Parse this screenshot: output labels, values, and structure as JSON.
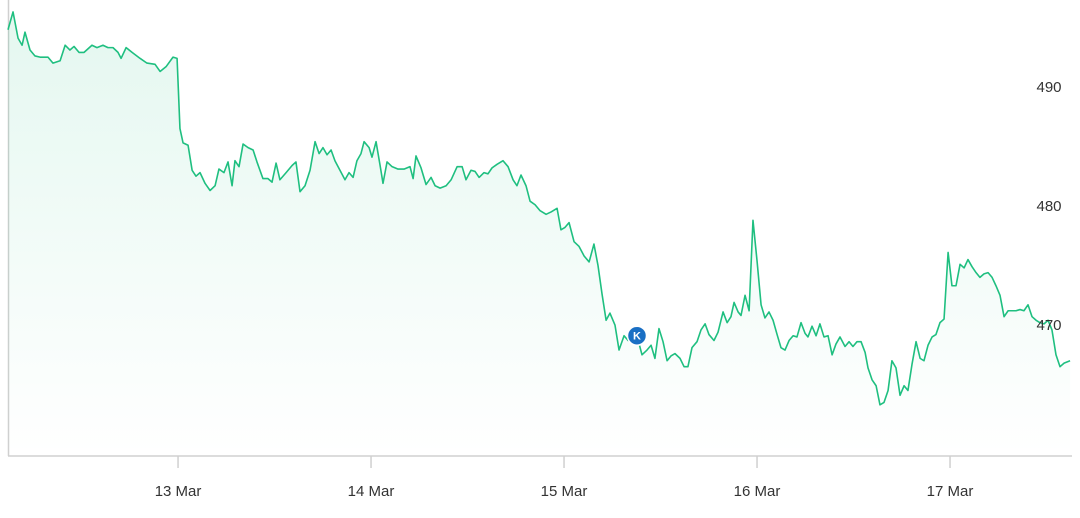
{
  "chart_data": {
    "type": "line",
    "color": "#1fbf80",
    "area": true,
    "xlim": [
      12.119,
      17.632
    ],
    "ylim": [
      459.1,
      497.4
    ],
    "xticks": [
      {
        "value": 13,
        "label": "13 Mar"
      },
      {
        "value": 14,
        "label": "14 Mar"
      },
      {
        "value": 15,
        "label": "15 Mar"
      },
      {
        "value": 16,
        "label": "16 Mar"
      },
      {
        "value": 17,
        "label": "17 Mar"
      }
    ],
    "yticks": [
      470,
      480,
      490
    ],
    "annotations": [
      {
        "x": 15.378,
        "y": 469.2,
        "text": "K"
      }
    ],
    "x": [
      12.119,
      12.145,
      12.171,
      12.192,
      12.207,
      12.233,
      12.259,
      12.285,
      12.326,
      12.352,
      12.389,
      12.415,
      12.44,
      12.461,
      12.487,
      12.513,
      12.554,
      12.58,
      12.611,
      12.637,
      12.663,
      12.689,
      12.705,
      12.731,
      12.762,
      12.803,
      12.839,
      12.881,
      12.907,
      12.938,
      12.974,
      12.995,
      13.01,
      13.026,
      13.052,
      13.073,
      13.093,
      13.114,
      13.14,
      13.166,
      13.192,
      13.212,
      13.238,
      13.259,
      13.28,
      13.295,
      13.316,
      13.337,
      13.363,
      13.389,
      13.409,
      13.44,
      13.466,
      13.487,
      13.508,
      13.528,
      13.56,
      13.591,
      13.611,
      13.632,
      13.658,
      13.684,
      13.71,
      13.731,
      13.751,
      13.772,
      13.793,
      13.813,
      13.839,
      13.865,
      13.886,
      13.907,
      13.927,
      13.948,
      13.964,
      13.99,
      14.005,
      14.026,
      14.047,
      14.062,
      14.083,
      14.109,
      14.14,
      14.171,
      14.202,
      14.218,
      14.233,
      14.259,
      14.285,
      14.311,
      14.332,
      14.358,
      14.389,
      14.415,
      14.446,
      14.472,
      14.492,
      14.518,
      14.539,
      14.56,
      14.585,
      14.606,
      14.627,
      14.653,
      14.684,
      14.71,
      14.736,
      14.756,
      14.777,
      14.803,
      14.824,
      14.85,
      14.876,
      14.907,
      14.933,
      14.964,
      14.984,
      15.005,
      15.026,
      15.052,
      15.078,
      15.104,
      15.13,
      15.155,
      15.176,
      15.197,
      15.218,
      15.238,
      15.264,
      15.285,
      15.311,
      15.332,
      15.352,
      15.378,
      15.404,
      15.43,
      15.451,
      15.471,
      15.492,
      15.513,
      15.534,
      15.554,
      15.575,
      15.601,
      15.622,
      15.642,
      15.663,
      15.689,
      15.71,
      15.731,
      15.751,
      15.777,
      15.798,
      15.824,
      15.845,
      15.865,
      15.881,
      15.902,
      15.917,
      15.938,
      15.959,
      15.979,
      16.0,
      16.021,
      16.041,
      16.062,
      16.083,
      16.104,
      16.124,
      16.145,
      16.166,
      16.187,
      16.207,
      16.228,
      16.249,
      16.264,
      16.285,
      16.306,
      16.326,
      16.347,
      16.368,
      16.389,
      16.409,
      16.43,
      16.456,
      16.477,
      16.497,
      16.518,
      16.539,
      16.56,
      16.575,
      16.596,
      16.617,
      16.637,
      16.658,
      16.679,
      16.699,
      16.72,
      16.741,
      16.762,
      16.782,
      16.803,
      16.824,
      16.845,
      16.865,
      16.886,
      16.907,
      16.927,
      16.948,
      16.969,
      16.99,
      17.01,
      17.031,
      17.052,
      17.073,
      17.093,
      17.114,
      17.135,
      17.155,
      17.176,
      17.197,
      17.218,
      17.238,
      17.259,
      17.28,
      17.301,
      17.321,
      17.342,
      17.363,
      17.383,
      17.404,
      17.425,
      17.446,
      17.466,
      17.487,
      17.508,
      17.528,
      17.549,
      17.57,
      17.591,
      17.622
    ],
    "values": [
      494.9,
      496.4,
      494.2,
      493.6,
      494.7,
      493.2,
      492.7,
      492.6,
      492.6,
      492.1,
      492.3,
      493.6,
      493.2,
      493.5,
      493.0,
      493.0,
      493.6,
      493.4,
      493.6,
      493.4,
      493.4,
      493.0,
      492.5,
      493.4,
      493.0,
      492.5,
      492.1,
      492.0,
      491.4,
      491.8,
      492.6,
      492.5,
      486.6,
      485.4,
      485.2,
      483.1,
      482.6,
      482.9,
      482.0,
      481.4,
      481.8,
      483.2,
      482.9,
      483.8,
      481.8,
      483.9,
      483.4,
      485.3,
      485.0,
      484.8,
      483.8,
      482.4,
      482.4,
      482.1,
      483.7,
      482.3,
      482.9,
      483.5,
      483.8,
      481.3,
      481.8,
      483.1,
      485.5,
      484.5,
      485.0,
      484.4,
      484.8,
      483.9,
      483.1,
      482.3,
      482.9,
      482.5,
      483.9,
      484.5,
      485.5,
      485.0,
      484.2,
      485.5,
      483.5,
      482.0,
      483.8,
      483.4,
      483.2,
      483.2,
      483.4,
      482.4,
      484.3,
      483.3,
      481.9,
      482.5,
      481.8,
      481.6,
      481.8,
      482.3,
      483.4,
      483.4,
      482.3,
      483.1,
      483.0,
      482.5,
      482.9,
      482.8,
      483.3,
      483.6,
      483.9,
      483.4,
      482.3,
      481.8,
      482.7,
      481.8,
      480.5,
      480.2,
      479.7,
      479.4,
      479.6,
      479.9,
      478.1,
      478.3,
      478.7,
      477.1,
      476.7,
      475.9,
      475.4,
      476.9,
      475.1,
      472.7,
      470.5,
      471.1,
      470.1,
      468.0,
      469.2,
      468.8,
      469.2,
      469.2,
      467.6,
      468.0,
      468.4,
      467.3,
      469.8,
      468.7,
      467.1,
      467.5,
      467.7,
      467.3,
      466.6,
      466.6,
      468.2,
      468.7,
      469.7,
      470.2,
      469.3,
      468.8,
      469.5,
      471.2,
      470.3,
      470.8,
      472.0,
      471.2,
      470.9,
      472.6,
      471.3,
      478.9,
      475.5,
      471.8,
      470.7,
      471.2,
      470.5,
      469.3,
      468.2,
      468.0,
      468.8,
      469.2,
      469.1,
      470.3,
      469.4,
      469.1,
      470.0,
      469.2,
      470.2,
      469.1,
      469.2,
      467.6,
      468.5,
      469.1,
      468.3,
      468.7,
      468.3,
      468.7,
      468.7,
      467.8,
      466.5,
      465.5,
      465.0,
      463.4,
      463.6,
      464.6,
      467.1,
      466.5,
      464.2,
      465.0,
      464.6,
      466.8,
      468.7,
      467.3,
      467.1,
      468.4,
      469.1,
      469.3,
      470.3,
      470.6,
      476.2,
      473.4,
      473.4,
      475.2,
      474.9,
      475.6,
      475.0,
      474.5,
      474.1,
      474.4,
      474.5,
      474.1,
      473.4,
      472.6,
      470.8,
      471.3,
      471.3,
      471.3,
      471.4,
      471.3,
      471.8,
      470.8,
      470.5,
      470.3,
      470.2,
      470.5,
      469.7,
      467.6,
      466.6,
      466.9,
      467.1
    ]
  }
}
